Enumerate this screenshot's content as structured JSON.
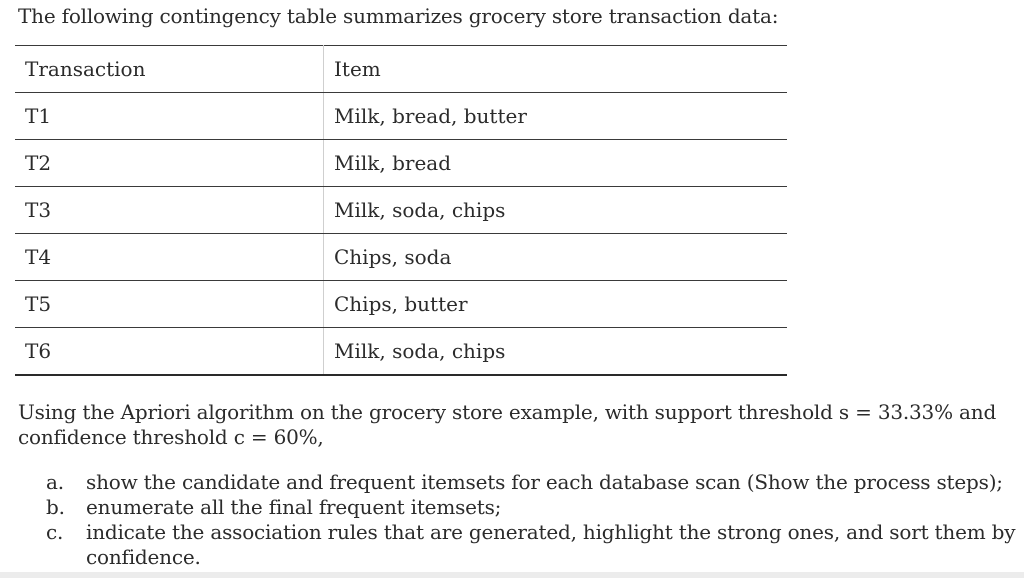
{
  "intro": "The following contingency table summarizes grocery store transaction data:",
  "table": {
    "headers": [
      "Transaction",
      "Item"
    ],
    "rows": [
      [
        "T1",
        "Milk, bread, butter"
      ],
      [
        "T2",
        "Milk, bread"
      ],
      [
        "T3",
        "Milk, soda, chips"
      ],
      [
        "T4",
        "Chips, soda"
      ],
      [
        "T5",
        "Chips, butter"
      ],
      [
        "T6",
        "Milk, soda, chips"
      ]
    ]
  },
  "question": "Using the Apriori algorithm on the grocery store example, with support threshold s = 33.33% and confidence threshold c = 60%,",
  "parts": [
    {
      "letter": "a.",
      "text": "show the candidate and frequent itemsets for each database scan (Show the process steps);"
    },
    {
      "letter": "b.",
      "text": "enumerate all the final frequent itemsets;"
    },
    {
      "letter": "c.",
      "text": "indicate the association rules that are generated, highlight the strong ones, and sort them by confidence."
    }
  ]
}
